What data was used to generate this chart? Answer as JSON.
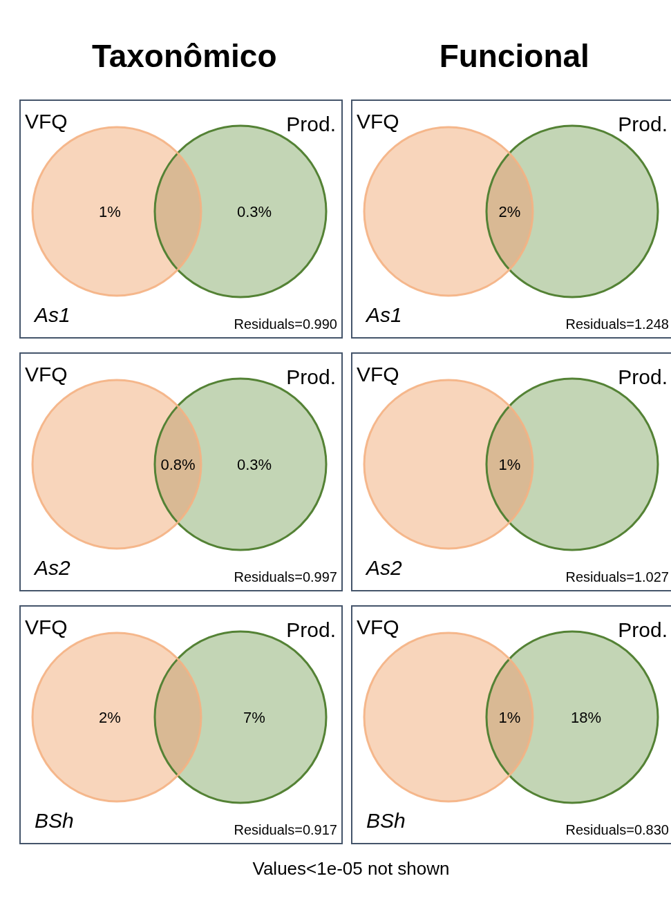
{
  "chart_data": [
    {
      "type": "other",
      "title": "Taxonômico",
      "subtitle": "As1",
      "values": [
        1,
        null,
        0.3
      ],
      "value_labels": [
        "1%",
        null,
        "0.3%"
      ],
      "colors": [
        "#f8d5bb",
        "#d9b994",
        "#c3d5b5"
      ],
      "annotations": [
        "VFQ",
        "Prod.",
        "Residuals=0.990"
      ]
    },
    {
      "type": "other",
      "title": "Funcional",
      "subtitle": "As1",
      "values": [
        null,
        2,
        null
      ],
      "value_labels": [
        null,
        "2%",
        null
      ],
      "colors": [
        "#f8d5bb",
        "#d9b994",
        "#c3d5b5"
      ],
      "annotations": [
        "VFQ",
        "Prod.",
        "Residuals=1.248"
      ]
    },
    {
      "type": "other",
      "subtitle": "As2",
      "values": [
        null,
        0.8,
        0.3
      ],
      "value_labels": [
        null,
        "0.8%",
        "0.3%"
      ],
      "colors": [
        "#f8d5bb",
        "#d9b994",
        "#c3d5b5"
      ],
      "annotations": [
        "VFQ",
        "Prod.",
        "Residuals=0.997"
      ]
    },
    {
      "type": "other",
      "subtitle": "As2",
      "values": [
        null,
        1,
        null
      ],
      "value_labels": [
        null,
        "1%",
        null
      ],
      "colors": [
        "#f8d5bb",
        "#d9b994",
        "#c3d5b5"
      ],
      "annotations": [
        "VFQ",
        "Prod.",
        "Residuals=1.027"
      ]
    },
    {
      "type": "other",
      "subtitle": "BSh",
      "values": [
        2,
        null,
        7
      ],
      "value_labels": [
        "2%",
        null,
        "7%"
      ],
      "colors": [
        "#f8d5bb",
        "#d9b994",
        "#c3d5b5"
      ],
      "annotations": [
        "VFQ",
        "Prod.",
        "Residuals=0.917"
      ]
    },
    {
      "type": "other",
      "subtitle": "BSh",
      "values": [
        null,
        1,
        18
      ],
      "value_labels": [
        null,
        "1%",
        "18%"
      ],
      "colors": [
        "#f8d5bb",
        "#d9b994",
        "#c3d5b5"
      ],
      "annotations": [
        "VFQ",
        "Prod.",
        "Residuals=0.830",
        "Values<1e-05 not shown"
      ]
    }
  ]
}
